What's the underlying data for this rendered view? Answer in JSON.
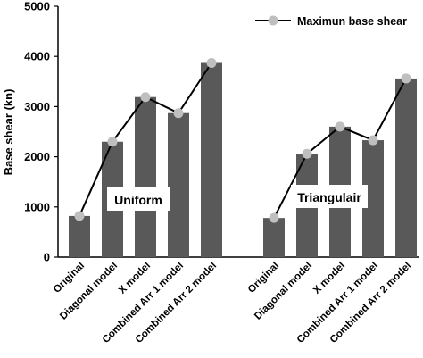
{
  "chart_data": {
    "type": "bar",
    "ylabel": "Base shear (kn)",
    "xlabel": "",
    "ylim": [
      0,
      5000
    ],
    "yticks": [
      0,
      1000,
      2000,
      3000,
      4000,
      5000
    ],
    "grid": false,
    "legend_position": "top-right",
    "colors": {
      "bar": "#595959",
      "line": "#000000",
      "marker": "#bfbfbf"
    },
    "line_series": {
      "name": "Maximun base shear"
    },
    "groups": [
      {
        "label": "Uniform",
        "categories": [
          "Original",
          "Diagonal model",
          "X model",
          "Combined Arr 1 model",
          "Combined Arr 2 model"
        ],
        "values": [
          820,
          2300,
          3190,
          2870,
          3870
        ]
      },
      {
        "label": "Triangulair",
        "categories": [
          "Original",
          "Diagonal model",
          "X model",
          "Combined Arr 1 model",
          "Combined Arr 2 model"
        ],
        "values": [
          780,
          2060,
          2600,
          2330,
          3560
        ]
      }
    ]
  }
}
